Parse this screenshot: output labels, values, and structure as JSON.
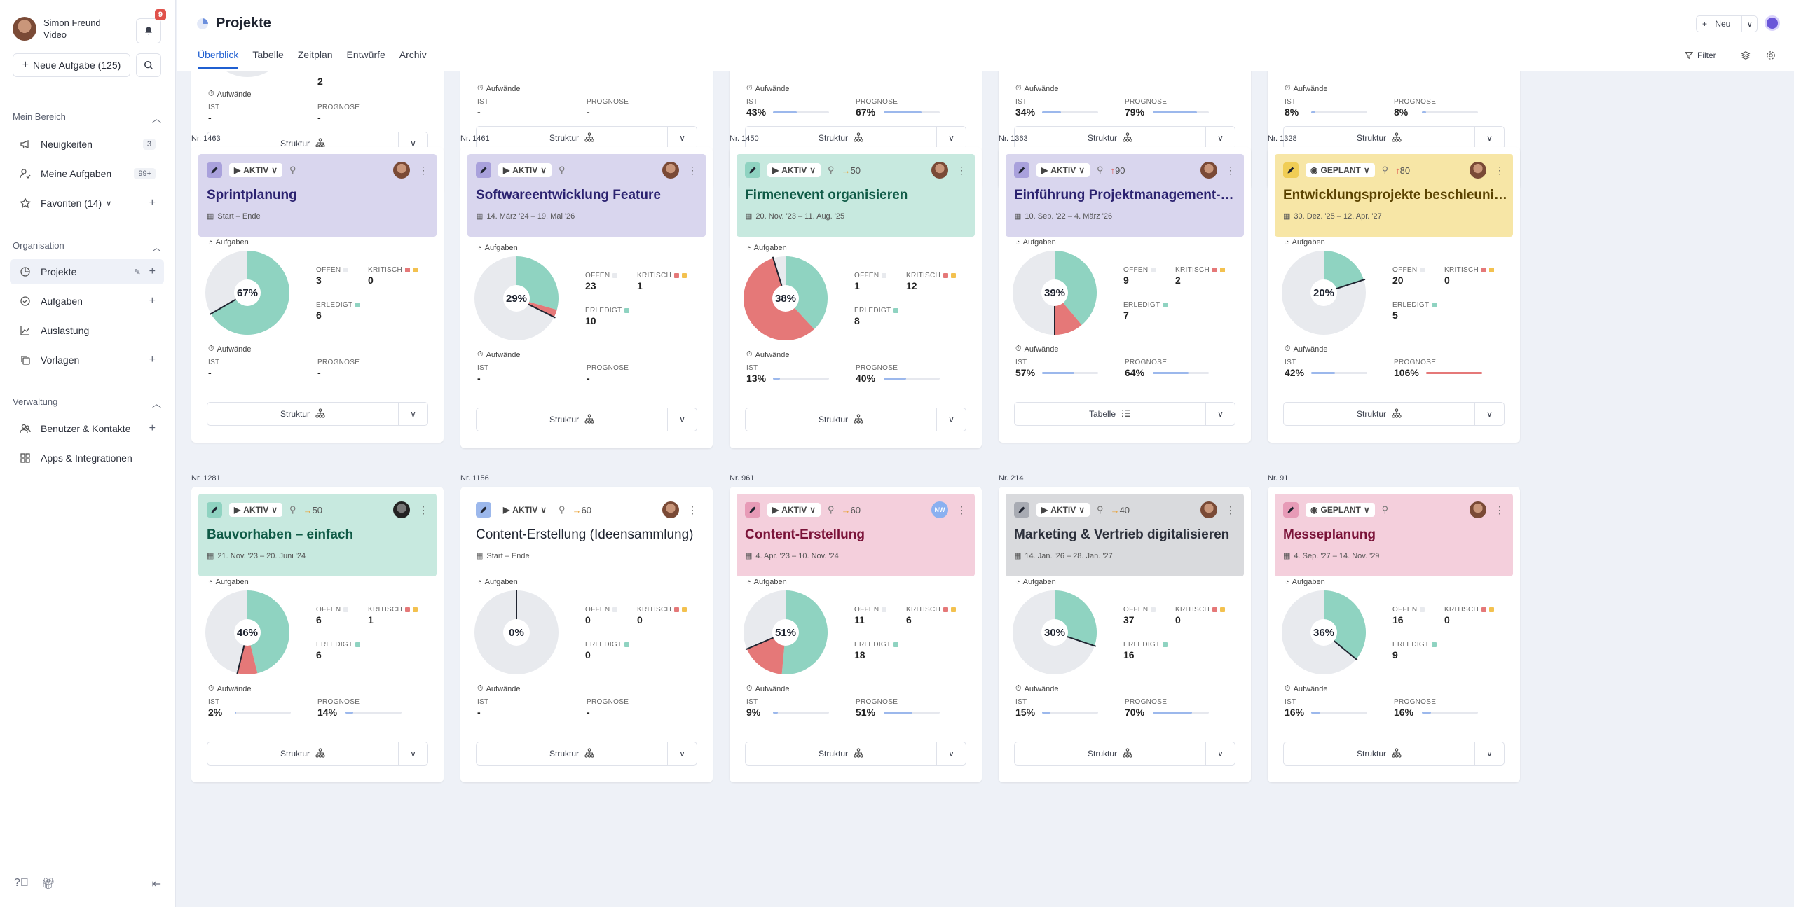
{
  "user": {
    "name": "Simon Freund",
    "subtitle": "Video",
    "notifications": "9"
  },
  "sidebar": {
    "new_task": "Neue Aufgabe (125)",
    "sections": [
      {
        "label": "Mein Bereich"
      },
      {
        "label": "Organisation"
      },
      {
        "label": "Verwaltung"
      }
    ],
    "items": [
      {
        "label": "Neuigkeiten",
        "icon": "megaphone-icon",
        "count": "3"
      },
      {
        "label": "Meine Aufgaben",
        "icon": "user-check-icon",
        "count": "99+"
      },
      {
        "label": "Favoriten (14)",
        "icon": "star-icon"
      },
      {
        "label": "Projekte",
        "icon": "pie-chart-icon",
        "active": true
      },
      {
        "label": "Aufgaben",
        "icon": "check-circle-icon"
      },
      {
        "label": "Auslastung",
        "icon": "chart-icon"
      },
      {
        "label": "Vorlagen",
        "icon": "copy-icon"
      },
      {
        "label": "Benutzer & Kontakte",
        "icon": "users-icon"
      },
      {
        "label": "Apps & Integrationen",
        "icon": "apps-icon"
      }
    ]
  },
  "header": {
    "title": "Projekte",
    "new_label": "Neu",
    "filter_label": "Filter",
    "tabs": [
      "Überblick",
      "Tabelle",
      "Zeitplan",
      "Entwürfe",
      "Archiv"
    ]
  },
  "labels": {
    "aufgaben": "Aufgaben",
    "aufwaende": "Aufwände",
    "offen": "OFFEN",
    "kritisch": "KRITISCH",
    "erledigt": "ERLEDIGT",
    "ist": "IST",
    "prognose": "PROGNOSE"
  },
  "colors": {
    "done": "#8fd3c1",
    "critical": "#e57878",
    "open": "#e8eaee",
    "bar": "#9cb8ec",
    "bar_over": "#e57878"
  },
  "top_partial": [
    {
      "open_val": "2",
      "ist": "-",
      "prognose": "-",
      "ist_fill": 0,
      "prog_fill": 0,
      "footer": "Struktur"
    },
    {
      "open_val": "",
      "ist": "-",
      "prognose": "-",
      "ist_fill": 0,
      "prog_fill": 0,
      "footer": "Struktur"
    },
    {
      "open_val": "",
      "ist": "43%",
      "prognose": "67%",
      "ist_fill": 0.43,
      "prog_fill": 0.67,
      "footer": "Struktur"
    },
    {
      "open_val": "",
      "ist": "34%",
      "prognose": "79%",
      "ist_fill": 0.34,
      "prog_fill": 0.79,
      "footer": "Struktur"
    },
    {
      "open_val": "",
      "ist": "8%",
      "prognose": "8%",
      "ist_fill": 0.08,
      "prog_fill": 0.08,
      "footer": "Struktur"
    }
  ],
  "projects": [
    {
      "nr": "Nr. 1463",
      "status": "AKTIV",
      "prio": "",
      "prio_type": "",
      "title": "Sprintplanung",
      "date": "Start – Ende",
      "head": "#d9d6ee",
      "edit": "#a9a1dc",
      "tc": "#2b2270",
      "avatar": "photo",
      "pct": "67%",
      "done": 6,
      "crit": 0,
      "open": 3,
      "open_v": "3",
      "crit_v": "0",
      "done_v": "6",
      "ist": "-",
      "prog": "-",
      "ist_f": 0,
      "prog_f": 0,
      "footer": "Struktur",
      "foot_icon": "hierarchy-icon"
    },
    {
      "nr": "Nr. 1461",
      "status": "AKTIV",
      "prio": "",
      "prio_type": "",
      "title": "Softwareentwicklung Feature",
      "date": "14. März '24 – 19. Mai '26",
      "head": "#d9d6ee",
      "edit": "#a9a1dc",
      "tc": "#2b2270",
      "avatar": "photo",
      "pct": "29%",
      "done": 10,
      "crit": 1,
      "open": 23,
      "open_v": "23",
      "crit_v": "1",
      "done_v": "10",
      "ist": "-",
      "prog": "-",
      "ist_f": 0,
      "prog_f": 0,
      "footer": "Struktur",
      "foot_icon": "hierarchy-icon"
    },
    {
      "nr": "Nr. 1450",
      "status": "AKTIV",
      "prio": "50",
      "prio_type": "a",
      "title": "Firmenevent organisieren",
      "date": "20. Nov. '23 – 11. Aug. '25",
      "head": "#c7e9df",
      "edit": "#8fd3c1",
      "tc": "#0f5a46",
      "avatar": "photo",
      "pct": "38%",
      "done": 8,
      "crit": 12,
      "open": 1,
      "open_v": "1",
      "crit_v": "12",
      "done_v": "8",
      "ist": "13%",
      "prog": "40%",
      "ist_f": 0.13,
      "prog_f": 0.4,
      "footer": "Struktur",
      "foot_icon": "hierarchy-icon"
    },
    {
      "nr": "Nr. 1363",
      "status": "AKTIV",
      "prio": "90",
      "prio_type": "r",
      "title": "Einführung Projektmanagement-Software",
      "date": "10. Sep. '22 – 4. März '26",
      "head": "#d9d6ee",
      "edit": "#a9a1dc",
      "tc": "#2b2270",
      "avatar": "photo",
      "pct": "39%",
      "done": 7,
      "crit": 2,
      "open": 9,
      "open_v": "9",
      "crit_v": "2",
      "done_v": "7",
      "ist": "57%",
      "prog": "64%",
      "ist_f": 0.57,
      "prog_f": 0.64,
      "footer": "Tabelle",
      "foot_icon": "list-icon"
    },
    {
      "nr": "Nr. 1328",
      "status": "GEPLANT",
      "prio": "80",
      "prio_type": "r",
      "title": "Entwicklungsprojekte beschleunigen",
      "date": "30. Dez. '25 – 12. Apr. '27",
      "head": "#f7e6a6",
      "edit": "#f0cd55",
      "tc": "#5a4200",
      "avatar": "photo",
      "pct": "20%",
      "done": 5,
      "crit": 0,
      "open": 20,
      "open_v": "20",
      "crit_v": "0",
      "done_v": "5",
      "ist": "42%",
      "prog": "106%",
      "ist_f": 0.42,
      "prog_f": 1.0,
      "prog_over": true,
      "footer": "Struktur",
      "foot_icon": "hierarchy-icon"
    },
    {
      "nr": "Nr. 1281",
      "status": "AKTIV",
      "prio": "50",
      "prio_type": "a",
      "title": "Bauvorhaben – einfach",
      "date": "21. Nov. '23 – 20. Juni '24",
      "head": "#c7e9df",
      "edit": "#8fd3c1",
      "tc": "#0f5a46",
      "avatar": "dark",
      "pct": "46%",
      "done": 6,
      "crit": 1,
      "open": 6,
      "open_v": "6",
      "crit_v": "1",
      "done_v": "6",
      "ist": "2%",
      "prog": "14%",
      "ist_f": 0.02,
      "prog_f": 0.14,
      "footer": "Struktur",
      "foot_icon": "hierarchy-icon"
    },
    {
      "nr": "Nr. 1156",
      "status": "AKTIV",
      "prio": "60",
      "prio_type": "a",
      "title": "Content-Erstellung (Ideensammlung)",
      "date": "Start – Ende",
      "head": "#ffffff",
      "edit": "#9cb8ec",
      "tc": "#1f2430",
      "avatar": "photo",
      "pct": "0%",
      "done": 0,
      "crit": 0,
      "open": 0,
      "open_v": "0",
      "crit_v": "0",
      "done_v": "0",
      "ist": "-",
      "prog": "-",
      "ist_f": 0,
      "prog_f": 0,
      "footer": "Struktur",
      "foot_icon": "hierarchy-icon"
    },
    {
      "nr": "Nr. 961",
      "status": "AKTIV",
      "prio": "60",
      "prio_type": "a",
      "title": "Content-Erstellung",
      "date": "4. Apr. '23 – 10. Nov. '24",
      "head": "#f4cfdc",
      "edit": "#e79bb7",
      "tc": "#7a1238",
      "avatar": "NW",
      "pct": "51%",
      "done": 18,
      "crit": 6,
      "open": 11,
      "open_v": "11",
      "crit_v": "6",
      "done_v": "18",
      "ist": "9%",
      "prog": "51%",
      "ist_f": 0.09,
      "prog_f": 0.51,
      "footer": "Struktur",
      "foot_icon": "hierarchy-icon"
    },
    {
      "nr": "Nr. 214",
      "status": "AKTIV",
      "prio": "40",
      "prio_type": "a",
      "title": "Marketing & Vertrieb digitalisieren",
      "date": "14. Jan. '26 – 28. Jan. '27",
      "head": "#d9dadd",
      "edit": "#a8abb3",
      "tc": "#2b2f3a",
      "avatar": "photo",
      "pct": "30%",
      "done": 16,
      "crit": 0,
      "open": 37,
      "open_v": "37",
      "crit_v": "0",
      "done_v": "16",
      "ist": "15%",
      "prog": "70%",
      "ist_f": 0.15,
      "prog_f": 0.7,
      "footer": "Struktur",
      "foot_icon": "hierarchy-icon"
    },
    {
      "nr": "Nr. 91",
      "status": "GEPLANT",
      "prio": "",
      "prio_type": "",
      "title": "Messeplanung",
      "date": "4. Sep. '27 – 14. Nov. '29",
      "head": "#f4cfdc",
      "edit": "#e79bb7",
      "tc": "#7a1238",
      "avatar": "photo",
      "pct": "36%",
      "done": 9,
      "crit": 0,
      "open": 16,
      "open_v": "16",
      "crit_v": "0",
      "done_v": "9",
      "ist": "16%",
      "prog": "16%",
      "ist_f": 0.16,
      "prog_f": 0.16,
      "footer": "Struktur",
      "foot_icon": "hierarchy-icon"
    }
  ]
}
